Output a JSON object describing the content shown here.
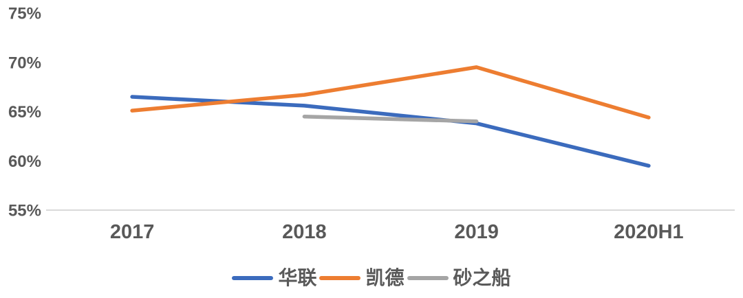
{
  "chart_data": {
    "type": "line",
    "title": "",
    "xlabel": "",
    "ylabel": "",
    "categories": [
      "2017",
      "2018",
      "2019",
      "2020H1"
    ],
    "series": [
      {
        "id": "hualian",
        "name": "华联",
        "color": "#3B6BBD",
        "values": [
          66.5,
          65.6,
          63.8,
          59.5
        ]
      },
      {
        "id": "kaide",
        "name": "凯德",
        "color": "#ED7D31",
        "values": [
          65.1,
          66.7,
          69.5,
          64.4
        ]
      },
      {
        "id": "shazhichuan",
        "name": "砂之船",
        "color": "#A5A5A5",
        "values": [
          null,
          64.5,
          64.0,
          null
        ]
      }
    ],
    "ylim": [
      55,
      75
    ],
    "y_ticks": [
      {
        "value": 75,
        "label": "75%"
      },
      {
        "value": 70,
        "label": "70%"
      },
      {
        "value": 65,
        "label": "65%"
      },
      {
        "value": 60,
        "label": "60%"
      },
      {
        "value": 55,
        "label": "55%"
      }
    ],
    "grid": false,
    "legend_position": "bottom"
  },
  "colors": {
    "background": "#FFFFFF",
    "axis_line": "#D9D9D9",
    "tick_text": "#595959",
    "legend_text": "#595959"
  }
}
